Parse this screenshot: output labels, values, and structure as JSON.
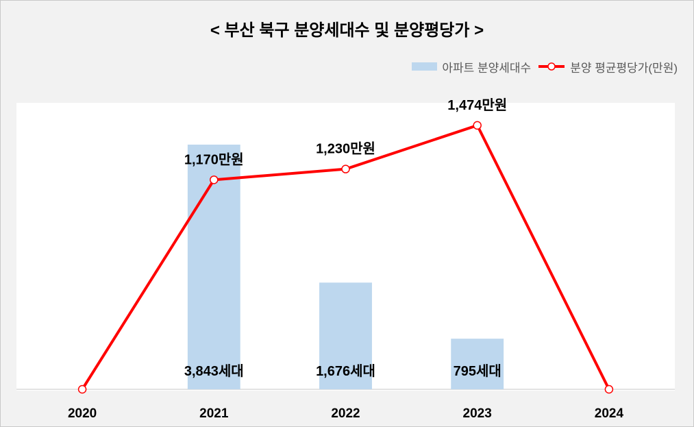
{
  "chart_data": {
    "type": "bar",
    "title": "< 부산 북구 분양세대수 및 분양평당가 >",
    "categories": [
      "2020",
      "2021",
      "2022",
      "2023",
      "2024"
    ],
    "series": [
      {
        "name": "아파트 분양세대수",
        "type": "bar",
        "axis": "primary",
        "color": "#bdd7ee",
        "values": [
          0,
          3843,
          1676,
          795,
          0
        ],
        "labels": [
          null,
          "3,843세대",
          "1,676세대",
          "795세대",
          null
        ]
      },
      {
        "name": "분양 평균평당가(만원)",
        "type": "line",
        "axis": "secondary",
        "color": "#ff0000",
        "marker_fill": "#ffffff",
        "values": [
          0,
          1170,
          1230,
          1474,
          0
        ],
        "labels": [
          null,
          "1,170만원",
          "1,230만원",
          "1,474만원",
          null
        ]
      }
    ],
    "ylim": [
      0,
      4500
    ],
    "y2lim": [
      0,
      1600
    ],
    "grid": false,
    "legend": "top-right",
    "plot_background": "#ffffff",
    "page_background": "#f2f2f2",
    "axis_line_color": "#d9d9d9"
  }
}
